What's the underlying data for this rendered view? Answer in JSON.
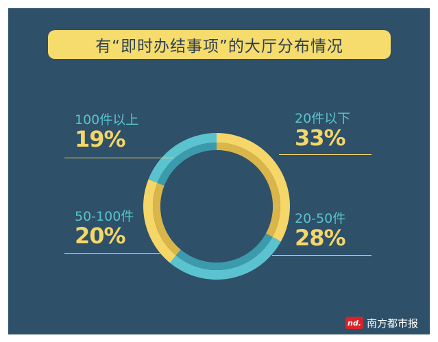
{
  "title": "有“即时办结事项”的大厅分布情况",
  "chart_data": {
    "type": "pie",
    "categories": [
      "20件以下",
      "20-50件",
      "50-100件",
      "100件以上"
    ],
    "values": [
      33,
      28,
      20,
      19
    ],
    "value_labels": [
      "33%",
      "28%",
      "20%",
      "19%"
    ],
    "colors": [
      "#f5d669",
      "#5bc3cf",
      "#f5d669",
      "#5bc3cf"
    ],
    "inner_colors": [
      "#d9b54a",
      "#3b9aab",
      "#d9b54a",
      "#3b9aab"
    ],
    "donut": true,
    "start_angle": "12 o'clock",
    "direction": "clockwise",
    "legend": "none"
  },
  "label_colors": {
    "name": "#5bc3cf",
    "pct": "#f5d669"
  },
  "brand": {
    "logo_text": "nd.",
    "name": "南方都市报"
  }
}
